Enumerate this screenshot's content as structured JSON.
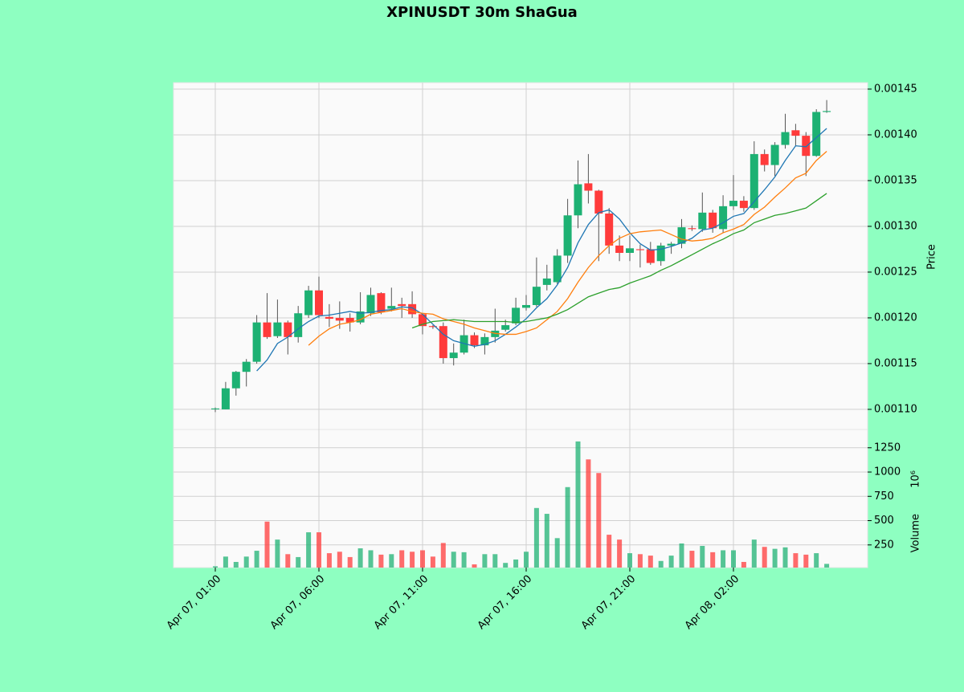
{
  "chart_data": {
    "type": "candlestick",
    "title": "XPINUSDT 30m ShaGua",
    "y_label": "Price",
    "volume_label": "Volume",
    "volume_scale": "10⁶",
    "x": [
      "Apr 07, 01:00",
      "Apr 07, 01:30",
      "Apr 07, 02:00",
      "Apr 07, 02:30",
      "Apr 07, 03:00",
      "Apr 07, 03:30",
      "Apr 07, 04:00",
      "Apr 07, 04:30",
      "Apr 07, 05:00",
      "Apr 07, 05:30",
      "Apr 07, 06:00",
      "Apr 07, 06:30",
      "Apr 07, 07:00",
      "Apr 07, 07:30",
      "Apr 07, 08:00",
      "Apr 07, 08:30",
      "Apr 07, 09:00",
      "Apr 07, 09:30",
      "Apr 07, 10:00",
      "Apr 07, 10:30",
      "Apr 07, 11:00",
      "Apr 07, 11:30",
      "Apr 07, 12:00",
      "Apr 07, 12:30",
      "Apr 07, 13:00",
      "Apr 07, 13:30",
      "Apr 07, 14:00",
      "Apr 07, 14:30",
      "Apr 07, 15:00",
      "Apr 07, 15:30",
      "Apr 07, 16:00",
      "Apr 07, 16:30",
      "Apr 07, 17:00",
      "Apr 07, 17:30",
      "Apr 07, 18:00",
      "Apr 07, 18:30",
      "Apr 07, 19:00",
      "Apr 07, 19:30",
      "Apr 07, 20:00",
      "Apr 07, 20:30",
      "Apr 07, 21:00",
      "Apr 07, 21:30",
      "Apr 07, 22:00",
      "Apr 07, 22:30",
      "Apr 07, 23:00",
      "Apr 07, 23:30",
      "Apr 08, 00:00",
      "Apr 08, 00:30",
      "Apr 08, 01:00",
      "Apr 08, 01:30",
      "Apr 08, 02:00",
      "Apr 08, 02:30",
      "Apr 08, 03:00",
      "Apr 08, 03:30",
      "Apr 08, 04:00",
      "Apr 08, 04:30",
      "Apr 08, 05:00",
      "Apr 08, 05:30",
      "Apr 08, 06:00",
      "Apr 08, 06:30"
    ],
    "open": [
      0.0011,
      0.0011,
      0.001123,
      0.001141,
      0.001152,
      0.001195,
      0.00118,
      0.001195,
      0.001179,
      0.001203,
      0.00123,
      0.001201,
      0.0012,
      0.0012,
      0.001195,
      0.001205,
      0.001227,
      0.00121,
      0.001215,
      0.001215,
      0.001204,
      0.001191,
      0.001191,
      0.001156,
      0.001162,
      0.001181,
      0.00117,
      0.001179,
      0.001187,
      0.001194,
      0.001211,
      0.001214,
      0.001236,
      0.001239,
      0.001268,
      0.001312,
      0.001347,
      0.001339,
      0.001314,
      0.001279,
      0.001271,
      0.001275,
      0.001275,
      0.001262,
      0.001279,
      0.001281,
      0.001298,
      0.001297,
      0.001315,
      0.001297,
      0.001322,
      0.001328,
      0.00132,
      0.001379,
      0.001367,
      0.001389,
      0.001405,
      0.001399,
      0.001377,
      0.001425
    ],
    "high": [
      0.001102,
      0.00113,
      0.001142,
      0.001155,
      0.001203,
      0.001227,
      0.00122,
      0.001197,
      0.001213,
      0.001235,
      0.001245,
      0.001215,
      0.001218,
      0.001205,
      0.001228,
      0.001233,
      0.001228,
      0.001233,
      0.001222,
      0.001229,
      0.001205,
      0.001192,
      0.001195,
      0.001172,
      0.001198,
      0.001184,
      0.001183,
      0.00121,
      0.001198,
      0.001222,
      0.001225,
      0.001266,
      0.001258,
      0.001275,
      0.00133,
      0.001372,
      0.001379,
      0.00134,
      0.00132,
      0.00129,
      0.00129,
      0.00128,
      0.001283,
      0.001282,
      0.001283,
      0.001308,
      0.001301,
      0.001337,
      0.001318,
      0.001334,
      0.001356,
      0.001333,
      0.001393,
      0.001384,
      0.001392,
      0.001423,
      0.001412,
      0.001403,
      0.001428,
      0.001438
    ],
    "low": [
      0.001097,
      0.0011,
      0.001115,
      0.001125,
      0.00115,
      0.001177,
      0.001178,
      0.00116,
      0.001173,
      0.0012,
      0.0012,
      0.00119,
      0.001188,
      0.001185,
      0.001193,
      0.001202,
      0.001204,
      0.001207,
      0.0012,
      0.0012,
      0.001182,
      0.001188,
      0.00115,
      0.001148,
      0.00116,
      0.001167,
      0.00116,
      0.001173,
      0.001185,
      0.001192,
      0.001208,
      0.001212,
      0.00123,
      0.001237,
      0.00126,
      0.001298,
      0.001325,
      0.001262,
      0.00127,
      0.001262,
      0.001262,
      0.001255,
      0.001258,
      0.001257,
      0.00127,
      0.001276,
      0.001295,
      0.001294,
      0.001293,
      0.001293,
      0.001318,
      0.001316,
      0.001318,
      0.00136,
      0.001355,
      0.001385,
      0.001388,
      0.001355,
      0.001376,
      0.001424
    ],
    "close": [
      0.001101,
      0.001123,
      0.001141,
      0.001152,
      0.001195,
      0.001179,
      0.001195,
      0.001179,
      0.001205,
      0.00123,
      0.001203,
      0.001199,
      0.001197,
      0.001195,
      0.001207,
      0.001225,
      0.001206,
      0.001213,
      0.001213,
      0.001204,
      0.001191,
      0.00119,
      0.001156,
      0.001162,
      0.001181,
      0.00117,
      0.001179,
      0.001186,
      0.001192,
      0.001211,
      0.001214,
      0.001234,
      0.001243,
      0.001268,
      0.001312,
      0.001346,
      0.001339,
      0.001314,
      0.001279,
      0.001271,
      0.001276,
      0.001274,
      0.00126,
      0.001279,
      0.001281,
      0.001299,
      0.001297,
      0.001315,
      0.001298,
      0.001322,
      0.001328,
      0.00132,
      0.001379,
      0.001367,
      0.001389,
      0.001403,
      0.001399,
      0.001377,
      0.001425,
      0.001426
    ],
    "volume": [
      30,
      130,
      75,
      130,
      190,
      490,
      305,
      155,
      125,
      380,
      380,
      165,
      180,
      125,
      215,
      195,
      150,
      155,
      195,
      180,
      195,
      130,
      270,
      180,
      175,
      50,
      155,
      155,
      65,
      100,
      180,
      630,
      570,
      320,
      845,
      1315,
      1130,
      990,
      355,
      305,
      165,
      155,
      140,
      85,
      140,
      265,
      190,
      240,
      175,
      195,
      195,
      75,
      305,
      230,
      210,
      225,
      165,
      150,
      165,
      55
    ],
    "up_color": "#1db173",
    "down_color": "#ff3b3b",
    "moving_averages": [
      {
        "color": "#1f77b4",
        "values": [
          null,
          null,
          null,
          null,
          0.001142,
          0.001154,
          0.001172,
          0.001179,
          0.001188,
          0.001196,
          0.001202,
          0.001203,
          0.001205,
          0.001207,
          0.001205,
          0.001206,
          0.001208,
          0.001209,
          0.001212,
          0.001211,
          0.001204,
          0.001193,
          0.001182,
          0.001175,
          0.001172,
          0.001169,
          0.001171,
          0.001175,
          0.001182,
          0.00119,
          0.001199,
          0.001211,
          0.001221,
          0.001236,
          0.001255,
          0.001282,
          0.001302,
          0.001315,
          0.001318,
          0.001308,
          0.001293,
          0.001281,
          0.001274,
          0.001275,
          0.001278,
          0.001282,
          0.001287,
          0.001296,
          0.001298,
          0.001304,
          0.001311,
          0.001314,
          0.001327,
          0.00134,
          0.001354,
          0.001372,
          0.001388,
          0.001387,
          0.001397,
          0.001407
        ]
      },
      {
        "color": "#ff7f0e",
        "values": [
          null,
          null,
          null,
          null,
          null,
          null,
          null,
          null,
          null,
          0.00117,
          0.00118,
          0.001188,
          0.001193,
          0.001195,
          0.001198,
          0.001204,
          0.001206,
          0.001208,
          0.00121,
          0.001207,
          0.001205,
          0.001204,
          0.001199,
          0.001196,
          0.001193,
          0.001189,
          0.001186,
          0.001183,
          0.001182,
          0.001182,
          0.001185,
          0.001189,
          0.001198,
          0.001207,
          0.001221,
          0.001239,
          0.001255,
          0.001268,
          0.001279,
          0.001287,
          0.001292,
          0.001294,
          0.001295,
          0.001296,
          0.001291,
          0.001286,
          0.001284,
          0.001285,
          0.001287,
          0.001293,
          0.001297,
          0.001302,
          0.001313,
          0.001321,
          0.001332,
          0.001342,
          0.001353,
          0.001358,
          0.001372,
          0.001382
        ]
      },
      {
        "color": "#2ca02c",
        "values": [
          null,
          null,
          null,
          null,
          null,
          null,
          null,
          null,
          null,
          null,
          null,
          null,
          null,
          null,
          null,
          null,
          null,
          null,
          null,
          0.001189,
          0.001193,
          0.001196,
          0.001197,
          0.001198,
          0.001197,
          0.001196,
          0.001196,
          0.001196,
          0.001196,
          0.001195,
          0.001196,
          0.001198,
          0.0012,
          0.001204,
          0.001209,
          0.001216,
          0.001223,
          0.001227,
          0.001231,
          0.001233,
          0.001238,
          0.001242,
          0.001246,
          0.001252,
          0.001257,
          0.001263,
          0.001269,
          0.001275,
          0.001281,
          0.001286,
          0.001292,
          0.001296,
          0.001304,
          0.001308,
          0.001312,
          0.001314,
          0.001317,
          0.00132,
          0.001328,
          0.001336
        ]
      }
    ],
    "ylim": [
      0.001078,
      0.001457
    ],
    "yticks": [
      {
        "value": 0.0011,
        "label": "0.00110"
      },
      0.00115,
      {
        "value": 0.0012,
        "label": "0.00120"
      },
      0.00125,
      {
        "value": 0.0013,
        "label": "0.00130"
      },
      0.00135,
      {
        "value": 0.0014,
        "label": "0.00140"
      },
      0.00145
    ],
    "volume_ylim": [
      17,
      1438
    ],
    "volume_yticks": [
      250,
      500,
      750,
      1000,
      1250
    ],
    "xticks": [
      "Apr 07, 01:00",
      "Apr 07, 06:00",
      "Apr 07, 11:00",
      "Apr 07, 16:00",
      "Apr 07, 21:00",
      "Apr 08, 02:00"
    ],
    "grid": true
  }
}
